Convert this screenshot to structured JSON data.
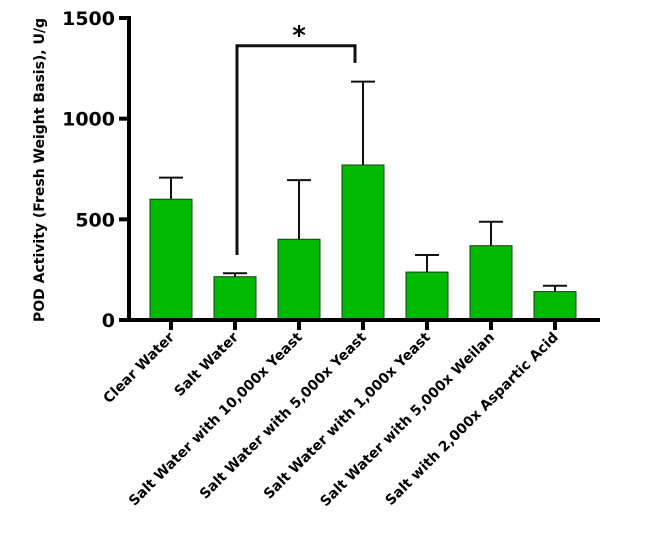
{
  "chart_data": {
    "type": "bar",
    "title": "",
    "xlabel": "",
    "ylabel": "POD Activity (Fresh Weight Basis), U/g",
    "ylim": [
      0,
      1500
    ],
    "yticks": [
      "0",
      "500",
      "1000",
      "1500"
    ],
    "grid": false,
    "categories": [
      "Clear Water",
      "Salt Water",
      "Salt Water with 10,000x Yeast",
      "Salt Water with 5,000x Yeast",
      "Salt Water with 1,000x Yeast",
      "Salt Water with 5,000x Weilan",
      "Salt with 2,000x Aspartic Acid"
    ],
    "values": [
      600,
      215,
      401,
      770,
      238,
      369,
      141
    ],
    "error_upper": [
      707,
      232,
      695,
      1184,
      323,
      488,
      170
    ],
    "bar_color": "#00bb00",
    "significance": {
      "from": "Salt Water",
      "to": "Salt Water with 5,000x Yeast",
      "label": "*"
    }
  }
}
